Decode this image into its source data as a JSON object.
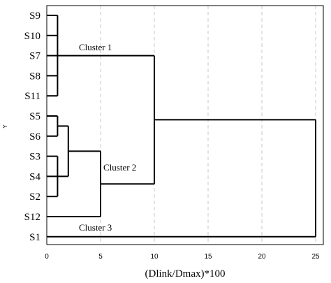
{
  "chart_data": {
    "type": "dendrogram",
    "xlabel": "(Dlink/Dmax)*100",
    "ylabel": "Y",
    "xlim": [
      0,
      27
    ],
    "xticks": [
      0,
      5,
      10,
      15,
      20,
      25
    ],
    "grid": "vertical dashed",
    "leaves": [
      "S9",
      "S10",
      "S7",
      "S8",
      "S11",
      "S5",
      "S6",
      "S3",
      "S4",
      "S2",
      "S12",
      "S1"
    ],
    "merges": [
      {
        "children": [
          "S9",
          "S10",
          "S7",
          "S8",
          "S11"
        ],
        "height": 1
      },
      {
        "children": [
          "S5",
          "S6"
        ],
        "height": 1
      },
      {
        "children": [
          "S3",
          "S4",
          "S2"
        ],
        "height": 1
      },
      {
        "children": [
          "S5-S6",
          "S3-S4-S2"
        ],
        "height": 2
      },
      {
        "children": [
          "S5-S6-S3-S4-S2",
          "S12"
        ],
        "height": 5
      },
      {
        "children": [
          "Cluster 1",
          "Cluster 2"
        ],
        "height": 10
      },
      {
        "children": [
          "Cluster 1+2",
          "S1"
        ],
        "height": 25
      }
    ],
    "annotations": [
      {
        "text": "Cluster 1",
        "cluster": "S9, S10, S7, S8, S11"
      },
      {
        "text": "Cluster 2",
        "cluster": "S5, S6, S3, S4, S2, S12"
      },
      {
        "text": "Cluster 3",
        "cluster": "S1"
      }
    ]
  }
}
